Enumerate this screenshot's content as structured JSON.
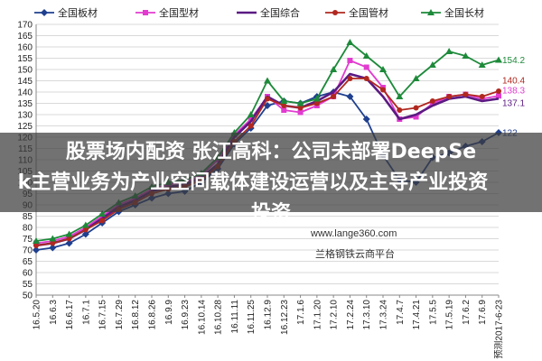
{
  "overlay": {
    "headline_line1": "股票场内配资 张江高科：公司未部署DeepSe",
    "headline_line2": "k主营业务为产业空间载体建设运营以及主导产业投资",
    "headline_line3": "投资"
  },
  "watermark": {
    "url": "www.lange360.com",
    "name": "兰格钢铁云商平台"
  },
  "chart_data": {
    "type": "line",
    "categories": [
      "16.5.20",
      "16.6.3",
      "16.6.17",
      "16.7.1",
      "16.7.15",
      "16.7.29",
      "16.8.12",
      "16.8.26",
      "16.9.9",
      "16.9.23",
      "16.10.14",
      "16.10.28",
      "16.11.11",
      "16.11.25",
      "16.12.9",
      "16.12.23",
      "17.1.6",
      "17.1.20",
      "17.2.10",
      "17.2.24",
      "17.3.10",
      "17.3.24",
      "17.4.7",
      "17.4.21",
      "17.5.5",
      "17.5.19",
      "17.6.2",
      "17.6.9",
      "预测2017-6-23"
    ],
    "ylim": [
      50,
      170
    ],
    "yticks": [
      50,
      55,
      60,
      65,
      70,
      75,
      80,
      85,
      90,
      95,
      100,
      105,
      110,
      115,
      120,
      125,
      130,
      135,
      140,
      145,
      150,
      155,
      160,
      165,
      170
    ],
    "grid": true,
    "legend_position": "top",
    "series": [
      {
        "name": "全国板材",
        "color": "#1f3f8f",
        "marker": "diamond",
        "values": [
          70,
          71,
          73,
          77,
          82,
          87,
          90,
          93,
          95,
          96,
          100,
          106,
          117,
          124,
          134,
          136,
          135,
          138,
          140,
          138,
          128,
          112,
          101,
          100,
          111,
          113,
          116,
          118,
          122
        ],
        "end_label": "122"
      },
      {
        "name": "全国型材",
        "color": "#e23bd0",
        "marker": "square",
        "values": [
          73,
          74,
          76,
          80,
          85,
          90,
          93,
          97,
          99,
          100,
          103,
          110,
          121,
          128,
          138,
          132,
          131,
          134,
          138,
          154,
          151,
          142,
          128,
          129,
          135,
          138,
          139,
          137,
          138.3
        ],
        "end_label": "138.3"
      },
      {
        "name": "全国综合",
        "color": "#5b1a82",
        "marker": "none",
        "values": [
          72,
          73,
          75,
          79,
          84,
          89,
          92,
          96,
          98,
          99,
          102,
          108,
          120,
          127,
          138,
          134,
          133,
          136,
          140,
          148,
          146,
          138,
          128,
          130,
          134,
          137,
          138,
          136,
          137.1
        ],
        "end_label": "137.1"
      },
      {
        "name": "全国管材",
        "color": "#b0281f",
        "marker": "circle",
        "values": [
          72,
          73,
          75,
          79,
          83,
          88,
          91,
          95,
          97,
          98,
          101,
          107,
          118,
          125,
          137,
          134,
          133,
          135,
          138,
          146,
          146,
          141,
          132,
          133,
          136,
          138,
          139,
          138,
          140.4
        ],
        "end_label": "140.4"
      },
      {
        "name": "全国长材",
        "color": "#1d8a3a",
        "marker": "triangle",
        "values": [
          74,
          75,
          77,
          81,
          86,
          91,
          94,
          98,
          100,
          101,
          104,
          111,
          122,
          130,
          145,
          136,
          135,
          137,
          150,
          162,
          156,
          150,
          138,
          146,
          152,
          158,
          156,
          152,
          154.2
        ],
        "end_label": "154.2"
      }
    ]
  }
}
